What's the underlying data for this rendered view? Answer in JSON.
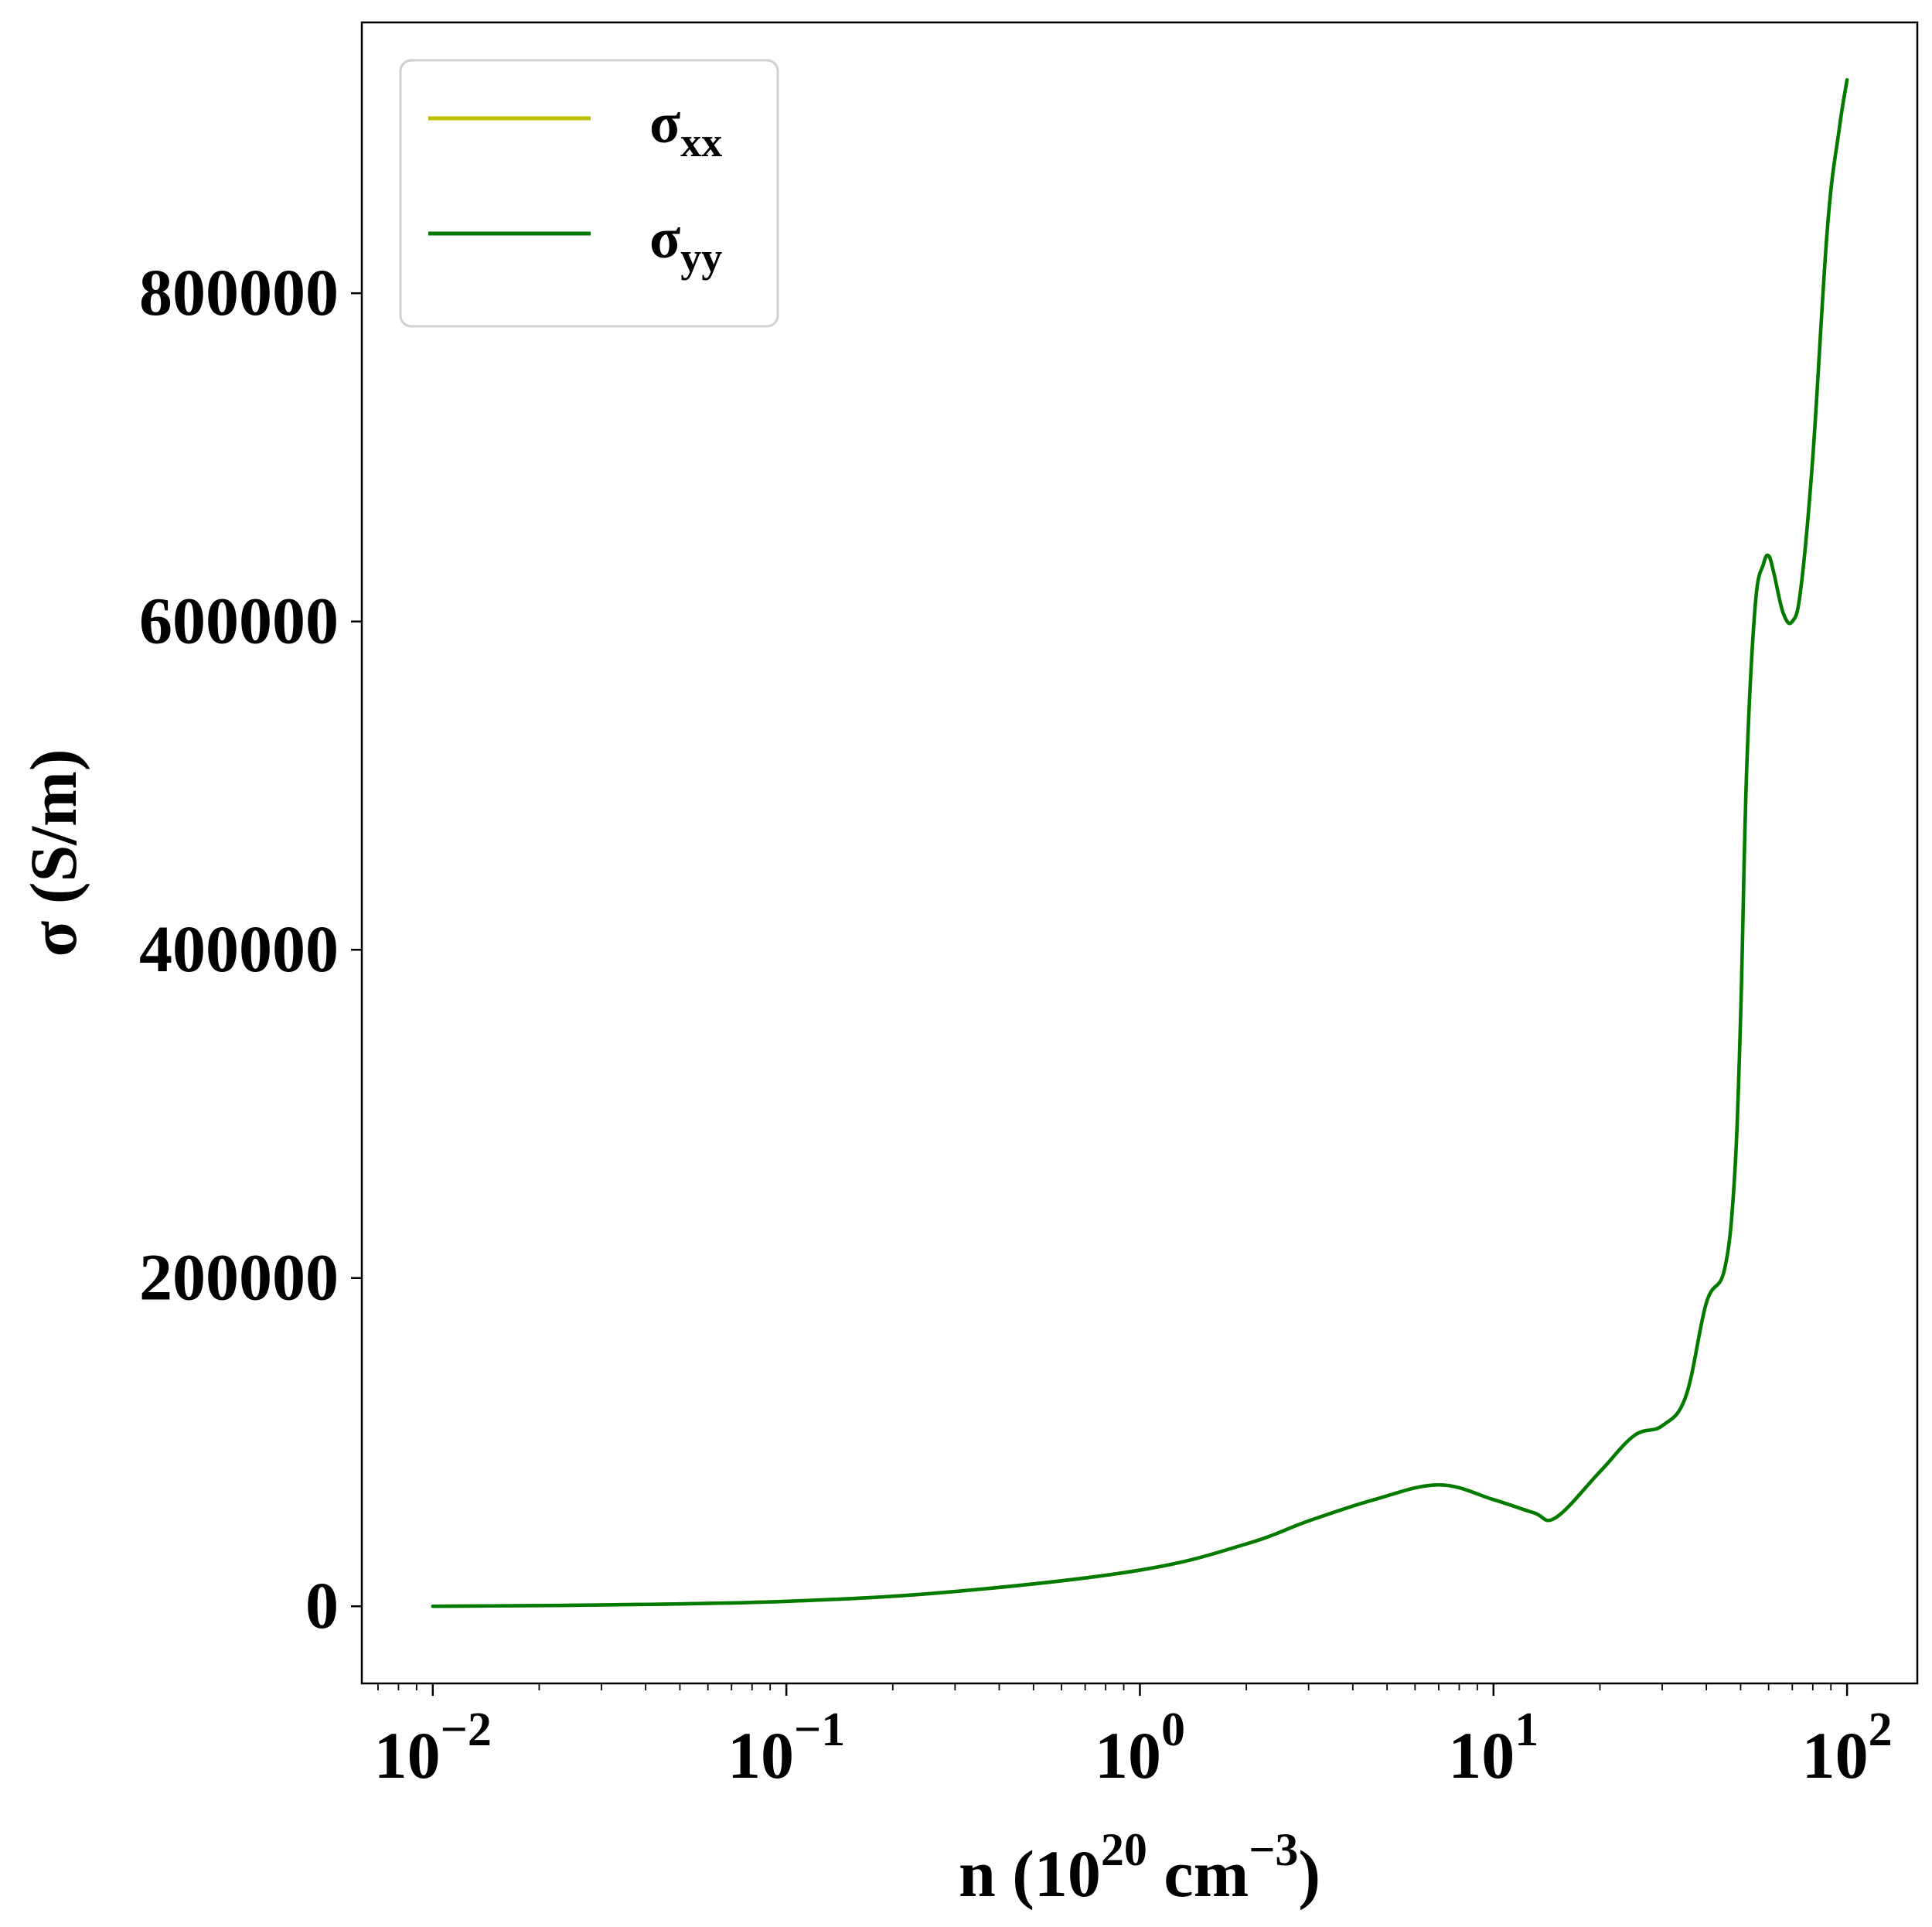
{
  "chart_data": {
    "type": "line",
    "xscale": "log",
    "xlim": [
      0.0063,
      158
    ],
    "ylim": [
      -47000,
      965000
    ],
    "xlabel": {
      "main": "n (10",
      "sup1": "20",
      "mid": " cm",
      "sup2": "−3",
      "end": ")"
    },
    "ylabel": "σ (S/m)",
    "grid": false,
    "legend_position": "top-left",
    "x_ticks": [
      {
        "value": 0.01,
        "base": "10",
        "exp": "−2"
      },
      {
        "value": 0.1,
        "base": "10",
        "exp": "−1"
      },
      {
        "value": 1,
        "base": "10",
        "exp": "0"
      },
      {
        "value": 10,
        "base": "10",
        "exp": "1"
      },
      {
        "value": 100,
        "base": "10",
        "exp": "2"
      }
    ],
    "y_ticks": [
      {
        "value": 0,
        "label": "0"
      },
      {
        "value": 200000,
        "label": "200000"
      },
      {
        "value": 400000,
        "label": "400000"
      },
      {
        "value": 600000,
        "label": "600000"
      },
      {
        "value": 800000,
        "label": "800000"
      }
    ],
    "series": [
      {
        "name": {
          "base": "σ",
          "sub": "xx"
        },
        "color": "#bfbf00",
        "x": [
          0.01,
          0.03,
          0.1,
          0.3,
          1.0,
          2.0,
          3.0,
          4.6,
          7.0,
          10.0,
          13.0,
          15.0,
          20.0,
          25.0,
          30.0,
          35.0,
          40.0,
          45.0,
          48.0,
          50.0,
          52.0,
          55.0,
          58.0,
          60.0,
          62.0,
          66.0,
          70.0,
          74.0,
          80.0,
          88.0,
          95.0,
          100.0
        ],
        "y": [
          0,
          800,
          3000,
          9000,
          22000,
          38000,
          52000,
          65000,
          74000,
          65000,
          57000,
          54000,
          82000,
          104000,
          110000,
          128000,
          185000,
          205000,
          260000,
          360000,
          510000,
          610000,
          635000,
          640000,
          630000,
          605000,
          600000,
          620000,
          700000,
          840000,
          900000,
          930000
        ]
      },
      {
        "name": {
          "base": "σ",
          "sub": "yy"
        },
        "color": "#007a00",
        "x": [
          0.01,
          0.03,
          0.1,
          0.3,
          1.0,
          2.0,
          3.0,
          4.6,
          7.0,
          10.0,
          13.0,
          15.0,
          20.0,
          25.0,
          30.0,
          35.0,
          40.0,
          45.0,
          48.0,
          50.0,
          52.0,
          55.0,
          58.0,
          60.0,
          62.0,
          66.0,
          70.0,
          74.0,
          80.0,
          88.0,
          95.0,
          100.0
        ],
        "y": [
          0,
          800,
          3000,
          9000,
          22000,
          38000,
          52000,
          65000,
          74000,
          65000,
          57000,
          54000,
          82000,
          104000,
          110000,
          128000,
          185000,
          205000,
          260000,
          360000,
          510000,
          610000,
          635000,
          640000,
          630000,
          605000,
          600000,
          620000,
          700000,
          840000,
          900000,
          930000
        ]
      }
    ]
  }
}
